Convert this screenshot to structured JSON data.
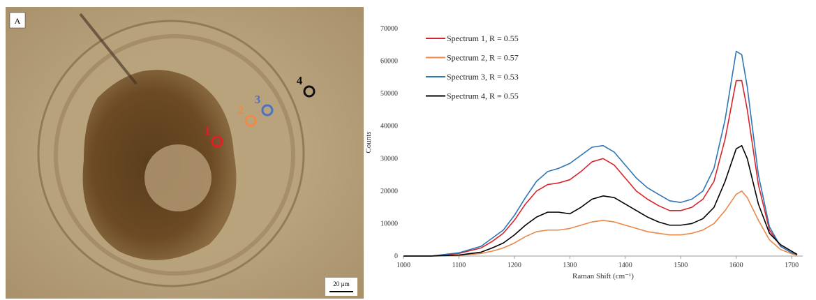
{
  "panel": {
    "label": "A",
    "markers": [
      {
        "label": "1",
        "color": "#e31e24"
      },
      {
        "label": "2",
        "color": "#ee8a45"
      },
      {
        "label": "3",
        "color": "#4a72c4"
      },
      {
        "label": "4",
        "color": "#111111"
      }
    ],
    "scale_bar": "20 µm"
  },
  "chart_data": {
    "type": "line",
    "x_label": "Raman Shift (cm⁻¹)",
    "y_label": "Counts",
    "x": [
      1000,
      1050,
      1100,
      1140,
      1160,
      1180,
      1200,
      1220,
      1240,
      1260,
      1280,
      1300,
      1320,
      1340,
      1360,
      1380,
      1400,
      1420,
      1440,
      1460,
      1480,
      1500,
      1520,
      1540,
      1560,
      1580,
      1600,
      1610,
      1620,
      1640,
      1660,
      1680,
      1700,
      1710
    ],
    "series": [
      {
        "name": "Spectrum 1, R = 0.55",
        "color": "#d9232a",
        "values": [
          0,
          0,
          800,
          2500,
          4500,
          7000,
          11000,
          16000,
          20000,
          22000,
          22500,
          23500,
          26000,
          29000,
          30000,
          28000,
          24000,
          20000,
          17500,
          15500,
          14000,
          14000,
          15000,
          17500,
          23000,
          36000,
          54000,
          54000,
          45000,
          22000,
          8000,
          3000,
          1000,
          500
        ]
      },
      {
        "name": "Spectrum 2, R = 0.57",
        "color": "#e9884a",
        "values": [
          0,
          0,
          200,
          800,
          1500,
          2500,
          4000,
          6000,
          7500,
          8000,
          8000,
          8500,
          9500,
          10500,
          11000,
          10500,
          9500,
          8500,
          7500,
          7000,
          6500,
          6500,
          7000,
          8000,
          10000,
          14000,
          19000,
          20000,
          18000,
          11000,
          5000,
          2000,
          700,
          200
        ]
      },
      {
        "name": "Spectrum 3, R = 0.53",
        "color": "#2e75b6",
        "values": [
          0,
          0,
          1000,
          3000,
          5500,
          8000,
          12500,
          18000,
          23000,
          26000,
          27000,
          28500,
          31000,
          33500,
          34000,
          32000,
          28000,
          24000,
          21000,
          19000,
          17000,
          16500,
          17500,
          20000,
          27000,
          42000,
          63000,
          62000,
          52000,
          25000,
          9000,
          3000,
          1000,
          500
        ]
      },
      {
        "name": "Spectrum 4, R = 0.55",
        "color": "#000000",
        "values": [
          0,
          0,
          300,
          1200,
          2500,
          4000,
          6500,
          9500,
          12000,
          13500,
          13500,
          13000,
          15000,
          17500,
          18500,
          18000,
          16000,
          14000,
          12000,
          10500,
          9500,
          9500,
          10000,
          11500,
          15000,
          23000,
          33000,
          34000,
          30000,
          16000,
          7000,
          3500,
          1500,
          500
        ]
      }
    ],
    "xlim": [
      1000,
      1720
    ],
    "xticks": [
      1000,
      1100,
      1200,
      1300,
      1400,
      1500,
      1600,
      1700
    ],
    "ylim": [
      0,
      70000
    ],
    "yticks": [
      0,
      10000,
      20000,
      30000,
      40000,
      50000,
      60000,
      70000
    ],
    "grid": false,
    "legend": "upper left"
  }
}
